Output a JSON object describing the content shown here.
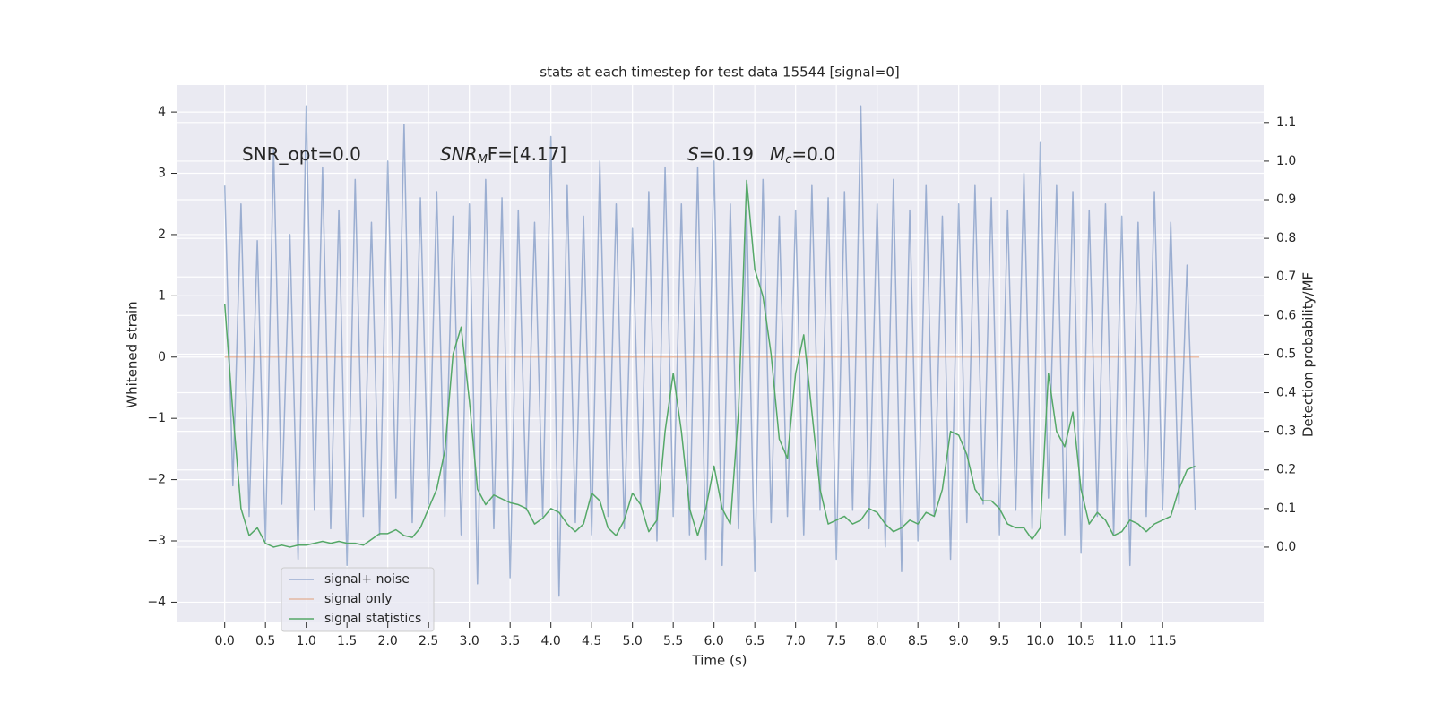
{
  "chart_data": {
    "type": "line",
    "title": "stats at each timestep for test data 15544 [signal=0]",
    "xlabel": "Time (s)",
    "ylabel": "Whitened strain",
    "y2label": "Detection probability/MF",
    "annotations": [
      [
        "SNR_opt=0.0"
      ],
      [
        "SNR",
        "M",
        "F=[4.17]"
      ],
      [
        "S",
        "=0.19"
      ],
      [
        "M",
        "c",
        "=0.0"
      ]
    ],
    "grid": true,
    "legend": "lower left",
    "xlim": [
      -0.59,
      12.74
    ],
    "ylim": [
      -4.33,
      4.44
    ],
    "y2lim": [
      -0.195,
      1.197
    ],
    "xticks": [
      {
        "value": 0,
        "label": "0.0"
      },
      0.5,
      {
        "value": 1,
        "label": "1.0"
      },
      1.5,
      {
        "value": 2,
        "label": "2.0"
      },
      2.5,
      {
        "value": 3,
        "label": "3.0"
      },
      3.5,
      {
        "value": 4,
        "label": "4.0"
      },
      4.5,
      {
        "value": 5,
        "label": "5.0"
      },
      5.5,
      {
        "value": 6,
        "label": "6.0"
      },
      6.5,
      {
        "value": 7,
        "label": "7.0"
      },
      7.5,
      {
        "value": 8,
        "label": "8.0"
      },
      8.5,
      {
        "value": 9,
        "label": "9.0"
      },
      9.5,
      {
        "value": 10,
        "label": "10.0"
      },
      10.5,
      {
        "value": 11,
        "label": "11.0"
      },
      11.5
    ],
    "yticks": [
      {
        "value": -4,
        "label": "−4"
      },
      {
        "value": -3,
        "label": "−3"
      },
      {
        "value": -2,
        "label": "−2"
      },
      {
        "value": -1,
        "label": "−1"
      },
      0,
      1,
      2,
      3,
      4
    ],
    "y2ticks": [
      {
        "value": 0,
        "label": "0.0"
      },
      0.1,
      0.2,
      0.3,
      0.4,
      0.5,
      0.6,
      0.7,
      0.8,
      0.9,
      {
        "value": 1,
        "label": "1.0"
      },
      1.1
    ],
    "x": [
      0,
      0.1,
      0.2,
      0.3,
      0.4,
      0.5,
      0.6,
      0.7,
      0.8,
      0.9,
      1,
      1.1,
      1.2,
      1.3,
      1.4,
      1.5,
      1.6,
      1.7,
      1.8,
      1.9,
      2,
      2.1,
      2.2,
      2.3,
      2.4,
      2.5,
      2.6,
      2.7,
      2.8,
      2.9,
      3,
      3.1,
      3.2,
      3.3,
      3.4,
      3.5,
      3.6,
      3.7,
      3.8,
      3.9,
      4,
      4.1,
      4.2,
      4.3,
      4.4,
      4.5,
      4.6,
      4.7,
      4.8,
      4.9,
      5,
      5.1,
      5.2,
      5.3,
      5.4,
      5.5,
      5.6,
      5.7,
      5.8,
      5.9,
      6,
      6.1,
      6.2,
      6.3,
      6.4,
      6.5,
      6.6,
      6.7,
      6.8,
      6.9,
      7,
      7.1,
      7.2,
      7.3,
      7.4,
      7.5,
      7.6,
      7.7,
      7.8,
      7.9,
      8,
      8.1,
      8.2,
      8.3,
      8.4,
      8.5,
      8.6,
      8.7,
      8.8,
      8.9,
      9,
      9.1,
      9.2,
      9.3,
      9.4,
      9.5,
      9.6,
      9.7,
      9.8,
      9.9,
      10,
      10.1,
      10.2,
      10.3,
      10.4,
      10.5,
      10.6,
      10.7,
      10.8,
      10.9,
      11,
      11.1,
      11.2,
      11.3,
      11.4,
      11.5,
      11.6,
      11.7,
      11.8,
      11.9
    ],
    "series": [
      {
        "name": "signal+ noise",
        "color": "#4c72b0",
        "opacity": 0.5,
        "values": [
          2.8,
          -2.1,
          2.5,
          -2.6,
          1.9,
          -3.0,
          3.4,
          -2.4,
          2.0,
          -3.3,
          4.1,
          -2.5,
          3.1,
          -2.8,
          2.4,
          -3.4,
          2.9,
          -2.6,
          2.2,
          -2.9,
          3.2,
          -2.3,
          3.8,
          -2.7,
          2.6,
          -2.4,
          2.7,
          -2.6,
          2.3,
          -2.9,
          2.5,
          -3.7,
          2.9,
          -2.8,
          2.6,
          -3.6,
          2.4,
          -2.5,
          2.2,
          -2.6,
          3.6,
          -3.9,
          2.8,
          -2.7,
          2.3,
          -2.9,
          3.2,
          -2.6,
          2.5,
          -2.8,
          2.1,
          -2.4,
          2.7,
          -3.0,
          3.1,
          -2.6,
          2.5,
          -2.9,
          3.1,
          -3.3,
          3.2,
          -3.4,
          2.5,
          -2.8,
          2.4,
          -3.5,
          2.9,
          -2.7,
          2.3,
          -2.6,
          2.4,
          -2.9,
          2.8,
          -2.5,
          2.6,
          -3.3,
          2.7,
          -2.5,
          4.1,
          -2.8,
          2.5,
          -3.1,
          2.9,
          -3.5,
          2.4,
          -3.0,
          2.8,
          -2.6,
          2.3,
          -3.3,
          2.5,
          -2.7,
          2.8,
          -2.4,
          2.6,
          -2.9,
          2.4,
          -2.5,
          3.0,
          -2.8,
          3.5,
          -2.3,
          2.8,
          -2.9,
          2.7,
          -3.2,
          2.4,
          -2.6,
          2.5,
          -2.9,
          2.3,
          -3.4,
          2.2,
          -2.6,
          2.7,
          -2.5,
          2.2,
          -2.4,
          1.5,
          -2.5
        ]
      },
      {
        "name": "signal only",
        "color": "#dd8452",
        "opacity": 0.5,
        "x": [
          0,
          11.95
        ],
        "values": [
          0,
          0
        ]
      },
      {
        "name": "signal statistics",
        "color": "#55a868",
        "opacity": 1,
        "axis": "y2",
        "values": [
          0.63,
          0.35,
          0.1,
          0.03,
          0.05,
          0.01,
          0.0,
          0.005,
          0.0,
          0.005,
          0.005,
          0.01,
          0.015,
          0.01,
          0.015,
          0.01,
          0.01,
          0.005,
          0.02,
          0.035,
          0.035,
          0.045,
          0.03,
          0.025,
          0.05,
          0.1,
          0.15,
          0.25,
          0.5,
          0.57,
          0.38,
          0.15,
          0.11,
          0.135,
          0.125,
          0.115,
          0.11,
          0.1,
          0.06,
          0.075,
          0.1,
          0.09,
          0.06,
          0.04,
          0.06,
          0.14,
          0.12,
          0.05,
          0.03,
          0.07,
          0.14,
          0.11,
          0.04,
          0.07,
          0.3,
          0.45,
          0.3,
          0.1,
          0.03,
          0.1,
          0.21,
          0.1,
          0.06,
          0.35,
          0.95,
          0.72,
          0.65,
          0.5,
          0.28,
          0.23,
          0.45,
          0.55,
          0.35,
          0.15,
          0.06,
          0.07,
          0.08,
          0.06,
          0.07,
          0.1,
          0.09,
          0.06,
          0.04,
          0.05,
          0.07,
          0.06,
          0.09,
          0.08,
          0.15,
          0.3,
          0.29,
          0.24,
          0.15,
          0.12,
          0.12,
          0.1,
          0.06,
          0.05,
          0.05,
          0.02,
          0.05,
          0.45,
          0.3,
          0.26,
          0.35,
          0.15,
          0.06,
          0.09,
          0.07,
          0.03,
          0.04,
          0.07,
          0.06,
          0.04,
          0.06,
          0.07,
          0.08,
          0.15,
          0.2,
          0.21
        ]
      }
    ]
  }
}
